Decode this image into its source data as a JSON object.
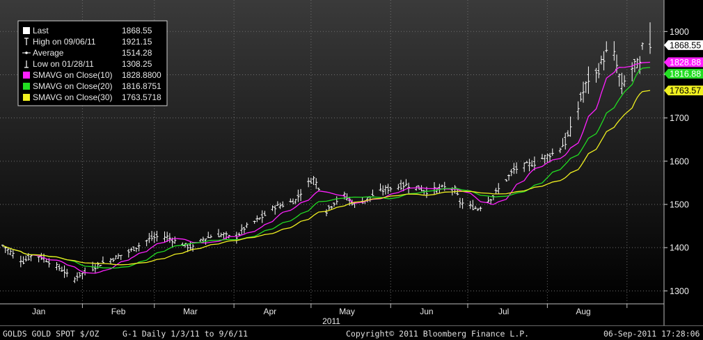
{
  "footer": {
    "ticker": "GOLDS  GOLD SPOT $/OZ",
    "info": "G-1  Daily  1/3/11 to 9/6/11",
    "copyright": "Copyright© 2011 Bloomberg Finance L.P.",
    "timestamp": "06-Sep-2011 17:28:06"
  },
  "colors": {
    "price": "#ffffff",
    "sma10": "#ff20ff",
    "sma20": "#22dd22",
    "sma30": "#f0f020",
    "background_top": "#3a3a3a",
    "background_bottom": "#000000"
  },
  "legend": [
    {
      "key": "last",
      "label": "Last",
      "value": "1868.55",
      "marker": "square",
      "color": "#ffffff"
    },
    {
      "key": "high",
      "label": "High on 09/06/11",
      "value": "1921.15",
      "marker": "high-tick",
      "color": "#ffffff"
    },
    {
      "key": "average",
      "label": "Average",
      "value": "1514.28",
      "marker": "dash-dot",
      "color": "#ffffff"
    },
    {
      "key": "low",
      "label": "Low on 01/28/11",
      "value": "1308.25",
      "marker": "low-tick",
      "color": "#ffffff"
    },
    {
      "key": "sma10",
      "label": "SMAVG on Close(10)",
      "value": "1828.8800",
      "marker": "square",
      "color": "#ff20ff"
    },
    {
      "key": "sma20",
      "label": "SMAVG on Close(20)",
      "value": "1816.8751",
      "marker": "square",
      "color": "#22dd22"
    },
    {
      "key": "sma30",
      "label": "SMAVG on Close(30)",
      "value": "1763.5718",
      "marker": "square",
      "color": "#f0f020"
    }
  ],
  "value_tags": [
    {
      "key": "last",
      "text": "1868.55",
      "value": 1868.55,
      "bg": "#ffffff",
      "fg": "#000000"
    },
    {
      "key": "sma10",
      "text": "1828.88",
      "value": 1828.88,
      "bg": "#ff20ff",
      "fg": "#ffffff"
    },
    {
      "key": "sma20",
      "text": "1816.88",
      "value": 1816.88,
      "bg": "#22dd22",
      "fg": "#ffffff"
    },
    {
      "key": "sma30",
      "text": "1763.57",
      "value": 1763.57,
      "bg": "#f0f020",
      "fg": "#000000"
    }
  ],
  "chart_data": {
    "type": "line",
    "year_label": "2011",
    "ylim": [
      1270,
      1960
    ],
    "yticks": [
      1300,
      1400,
      1500,
      1600,
      1700,
      1800,
      1900
    ],
    "ytick_labels": [
      "1300",
      "1400",
      "1500",
      "1600",
      "1700",
      "1800",
      "1900"
    ],
    "month_labels": [
      "Jan",
      "Feb",
      "Mar",
      "Apr",
      "May",
      "Jun",
      "Jul",
      "Aug"
    ],
    "month_label_day": [
      14,
      45,
      73,
      104,
      134,
      165,
      195,
      226
    ],
    "month_start_day": [
      31,
      59,
      90,
      120,
      151,
      181,
      212,
      243
    ],
    "xlim": [
      0,
      252
    ],
    "grid": true,
    "legend_position": "top-left",
    "price_anchors": [
      [
        0,
        1405
      ],
      [
        4,
        1385
      ],
      [
        8,
        1368
      ],
      [
        12,
        1385
      ],
      [
        16,
        1375
      ],
      [
        20,
        1360
      ],
      [
        24,
        1345
      ],
      [
        27,
        1320
      ],
      [
        29,
        1335
      ],
      [
        33,
        1345
      ],
      [
        37,
        1360
      ],
      [
        41,
        1370
      ],
      [
        45,
        1380
      ],
      [
        49,
        1390
      ],
      [
        53,
        1405
      ],
      [
        57,
        1420
      ],
      [
        60,
        1425
      ],
      [
        64,
        1425
      ],
      [
        67,
        1415
      ],
      [
        71,
        1405
      ],
      [
        74,
        1400
      ],
      [
        78,
        1420
      ],
      [
        82,
        1428
      ],
      [
        86,
        1430
      ],
      [
        90,
        1420
      ],
      [
        94,
        1445
      ],
      [
        98,
        1460
      ],
      [
        102,
        1475
      ],
      [
        106,
        1495
      ],
      [
        110,
        1500
      ],
      [
        114,
        1510
      ],
      [
        118,
        1545
      ],
      [
        121,
        1560
      ],
      [
        123,
        1540
      ],
      [
        126,
        1485
      ],
      [
        129,
        1505
      ],
      [
        133,
        1520
      ],
      [
        137,
        1500
      ],
      [
        141,
        1510
      ],
      [
        145,
        1525
      ],
      [
        149,
        1535
      ],
      [
        153,
        1540
      ],
      [
        157,
        1545
      ],
      [
        161,
        1540
      ],
      [
        165,
        1530
      ],
      [
        169,
        1535
      ],
      [
        173,
        1540
      ],
      [
        176,
        1535
      ],
      [
        178,
        1505
      ],
      [
        182,
        1495
      ],
      [
        185,
        1490
      ],
      [
        188,
        1505
      ],
      [
        191,
        1520
      ],
      [
        195,
        1550
      ],
      [
        199,
        1580
      ],
      [
        203,
        1590
      ],
      [
        207,
        1595
      ],
      [
        211,
        1610
      ],
      [
        215,
        1620
      ],
      [
        219,
        1645
      ],
      [
        222,
        1680
      ],
      [
        225,
        1745
      ],
      [
        228,
        1790
      ],
      [
        231,
        1800
      ],
      [
        234,
        1840
      ],
      [
        237,
        1870
      ],
      [
        239,
        1820
      ],
      [
        241,
        1770
      ],
      [
        243,
        1795
      ],
      [
        246,
        1825
      ],
      [
        248,
        1822
      ],
      [
        250,
        1900
      ],
      [
        252,
        1868
      ]
    ],
    "series": [
      {
        "key": "price",
        "name": "Last",
        "type": "ohlc",
        "color": "#ffffff"
      },
      {
        "key": "sma10",
        "name": "SMAVG on Close(10)",
        "window": 10,
        "color": "#ff20ff",
        "last": 1828.88
      },
      {
        "key": "sma20",
        "name": "SMAVG on Close(20)",
        "window": 20,
        "color": "#22dd22",
        "last": 1816.8751
      },
      {
        "key": "sma30",
        "name": "SMAVG on Close(30)",
        "window": 30,
        "color": "#f0f020",
        "last": 1763.5718
      }
    ],
    "last": 1868.55,
    "high": 1921.15,
    "high_date": "09/06/11",
    "low": 1308.25,
    "low_date": "01/28/11",
    "average": 1514.28
  }
}
